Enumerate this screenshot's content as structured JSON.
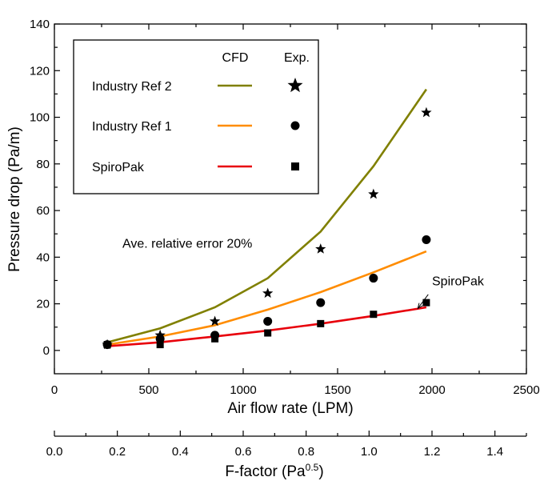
{
  "chart_data": {
    "type": "line",
    "xlabel": "Air flow rate (LPM)",
    "ylabel": "Pressure drop (Pa/m)",
    "xlim": [
      0,
      2500
    ],
    "ylim": [
      -10,
      140
    ],
    "x_ticks": [
      0,
      500,
      1000,
      1500,
      2000,
      2500
    ],
    "y_ticks": [
      0,
      20,
      40,
      60,
      80,
      100,
      120,
      140
    ],
    "secondary_x_axis": {
      "label_main": "F-factor (Pa",
      "label_sup": "0.5",
      "label_end": ")",
      "ticks": [
        "0.0",
        "0.2",
        "0.4",
        "0.6",
        "0.8",
        "1.0",
        "1.2",
        "1.4"
      ]
    },
    "legend": {
      "header_cfd": "CFD",
      "header_exp": "Exp.",
      "placement": "top-left"
    },
    "series": [
      {
        "name": "Industry Ref 2",
        "color": "#808000",
        "marker": "star",
        "cfd": {
          "x": [
            280,
            560,
            850,
            1130,
            1410,
            1690,
            1970
          ],
          "y": [
            3.5,
            9.5,
            18.5,
            31,
            51,
            79,
            112
          ]
        },
        "exp": {
          "x": [
            280,
            560,
            850,
            1130,
            1410,
            1690,
            1970
          ],
          "y": [
            2.5,
            6.5,
            12.5,
            24.5,
            43.5,
            67,
            102
          ]
        }
      },
      {
        "name": "Industry Ref 1",
        "color": "#ff8c00",
        "marker": "circle",
        "cfd": {
          "x": [
            280,
            560,
            850,
            1130,
            1410,
            1690,
            1970
          ],
          "y": [
            2.5,
            6,
            10.8,
            17.5,
            25,
            33.5,
            42.5
          ]
        },
        "exp": {
          "x": [
            280,
            560,
            850,
            1130,
            1410,
            1690,
            1970
          ],
          "y": [
            2.5,
            5,
            6.5,
            12.5,
            20.5,
            31,
            47.5
          ]
        }
      },
      {
        "name": "SpiroPak",
        "color": "#e8000b",
        "marker": "square",
        "cfd": {
          "x": [
            280,
            560,
            850,
            1130,
            1410,
            1690,
            1970
          ],
          "y": [
            1.8,
            3.5,
            6,
            8.5,
            11.5,
            14.8,
            18.5
          ]
        },
        "exp": {
          "x": [
            280,
            560,
            850,
            1130,
            1410,
            1690,
            1970
          ],
          "y": [
            2.5,
            2.5,
            5,
            7.5,
            11.5,
            15.5,
            20.5
          ]
        }
      }
    ],
    "annotations": [
      {
        "text": "Ave. relative error 20%",
        "x": 360,
        "y": 44
      },
      {
        "text": "SpiroPak",
        "x": 2000,
        "y": 28,
        "arrow_to": {
          "x": 1925,
          "y": 18
        },
        "arrow_from": {
          "x": 1980,
          "y": 24
        }
      }
    ]
  }
}
